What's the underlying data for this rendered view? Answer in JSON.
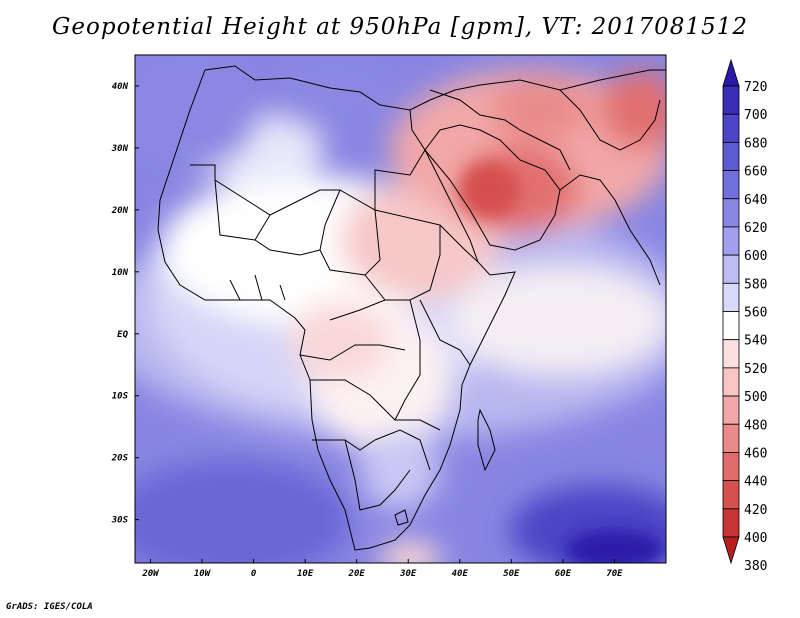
{
  "title": "Geopotential Height at 950hPa [gpm], VT: 2017081512",
  "footer": "GrADS: IGES/COLA",
  "map": {
    "lon_labels": [
      "20W",
      "10W",
      "0",
      "10E",
      "20E",
      "30E",
      "40E",
      "50E",
      "60E",
      "70E"
    ],
    "lat_labels": [
      "40N",
      "30N",
      "20N",
      "10N",
      "EQ",
      "10S",
      "20S",
      "30S"
    ],
    "lon_range": [
      -23,
      80
    ],
    "lat_range": [
      -37,
      45
    ]
  },
  "colorbar": {
    "levels": [
      "720",
      "700",
      "680",
      "660",
      "640",
      "620",
      "600",
      "580",
      "560",
      "540",
      "520",
      "500",
      "480",
      "460",
      "440",
      "420",
      "400",
      "380"
    ],
    "colors": [
      "#2a1aa8",
      "#3a2eb8",
      "#4c44c6",
      "#5e5ad2",
      "#7270dc",
      "#8888e4",
      "#a0a0ec",
      "#bcbcf2",
      "#d8d8f8",
      "#ffffff",
      "#fce0e0",
      "#f8c4c4",
      "#f2a8a8",
      "#ea8a8a",
      "#e06c6c",
      "#d65050",
      "#c83434",
      "#b82020"
    ]
  },
  "colors": {
    "ocean_blue": "#7a78e0",
    "deep_blue": "#2a1aa8",
    "border": "#000000"
  }
}
